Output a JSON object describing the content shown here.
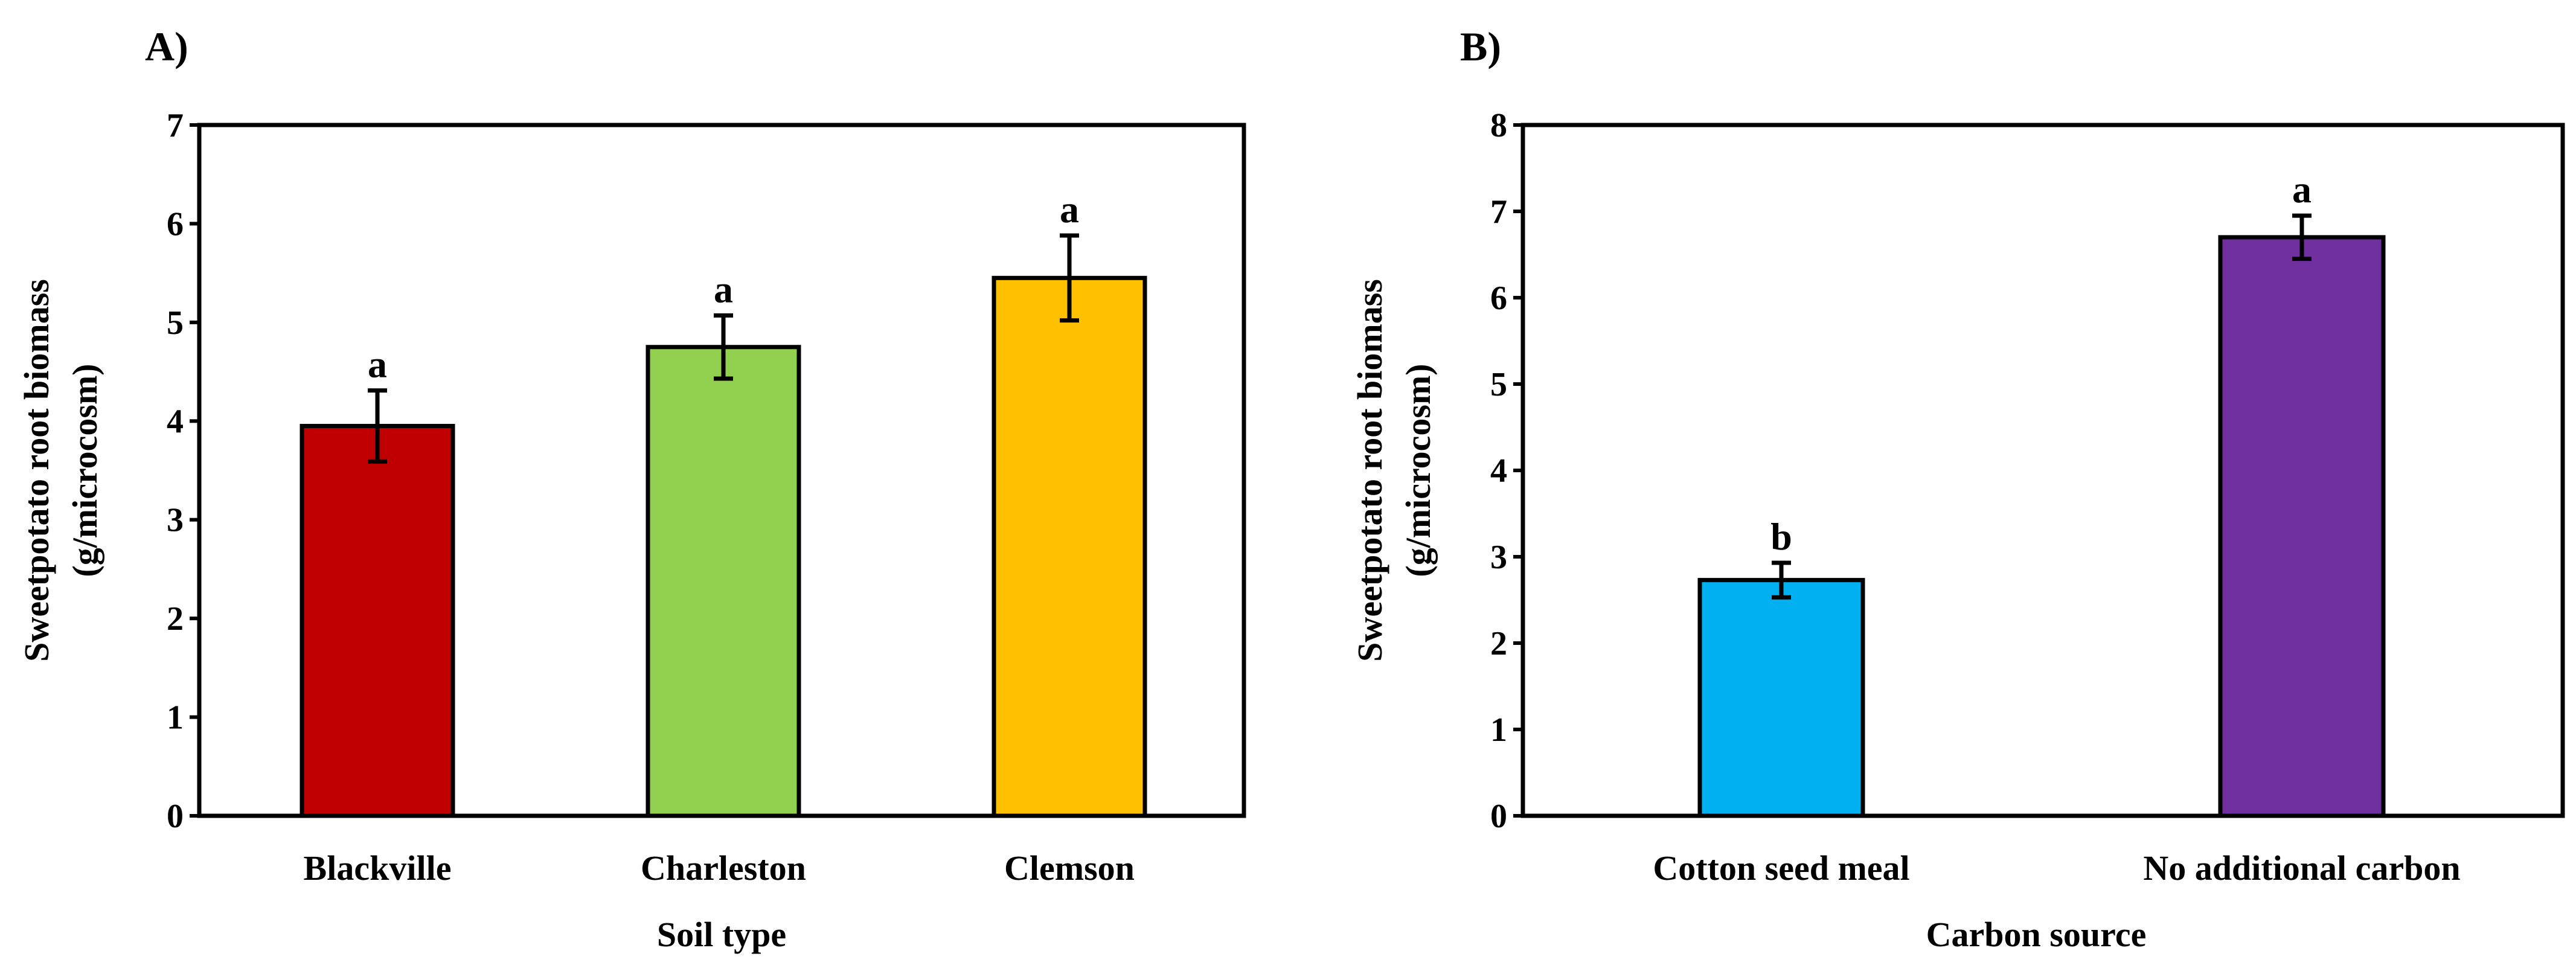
{
  "chart_data": [
    {
      "type": "bar",
      "panel_label": "A)",
      "title": "",
      "xlabel": "Soil type",
      "ylabel_lines": [
        "Sweetpotato root biomass",
        "(g/microcosm)"
      ],
      "ylim": [
        0,
        7
      ],
      "yticks": [
        0,
        1,
        2,
        3,
        4,
        5,
        6,
        7
      ],
      "categories": [
        "Blackville",
        "Charleston",
        "Clemson"
      ],
      "values": [
        3.95,
        4.75,
        5.45
      ],
      "errors": [
        0.36,
        0.32,
        0.43
      ],
      "significance": [
        "a",
        "a",
        "a"
      ],
      "colors": [
        "#c00000",
        "#92d050",
        "#ffc000"
      ],
      "grid": false
    },
    {
      "type": "bar",
      "panel_label": "B)",
      "title": "",
      "xlabel": "Carbon source",
      "ylabel_lines": [
        "Sweetpotato root biomass",
        "(g/microcosm)"
      ],
      "ylim": [
        0,
        8
      ],
      "yticks": [
        0,
        1,
        2,
        3,
        4,
        5,
        6,
        7,
        8
      ],
      "categories": [
        "Cotton seed meal",
        "No additional carbon"
      ],
      "values": [
        2.73,
        6.7
      ],
      "errors": [
        0.2,
        0.25
      ],
      "significance": [
        "b",
        "a"
      ],
      "colors": [
        "#00b0f0",
        "#7030a0"
      ],
      "grid": false
    }
  ]
}
